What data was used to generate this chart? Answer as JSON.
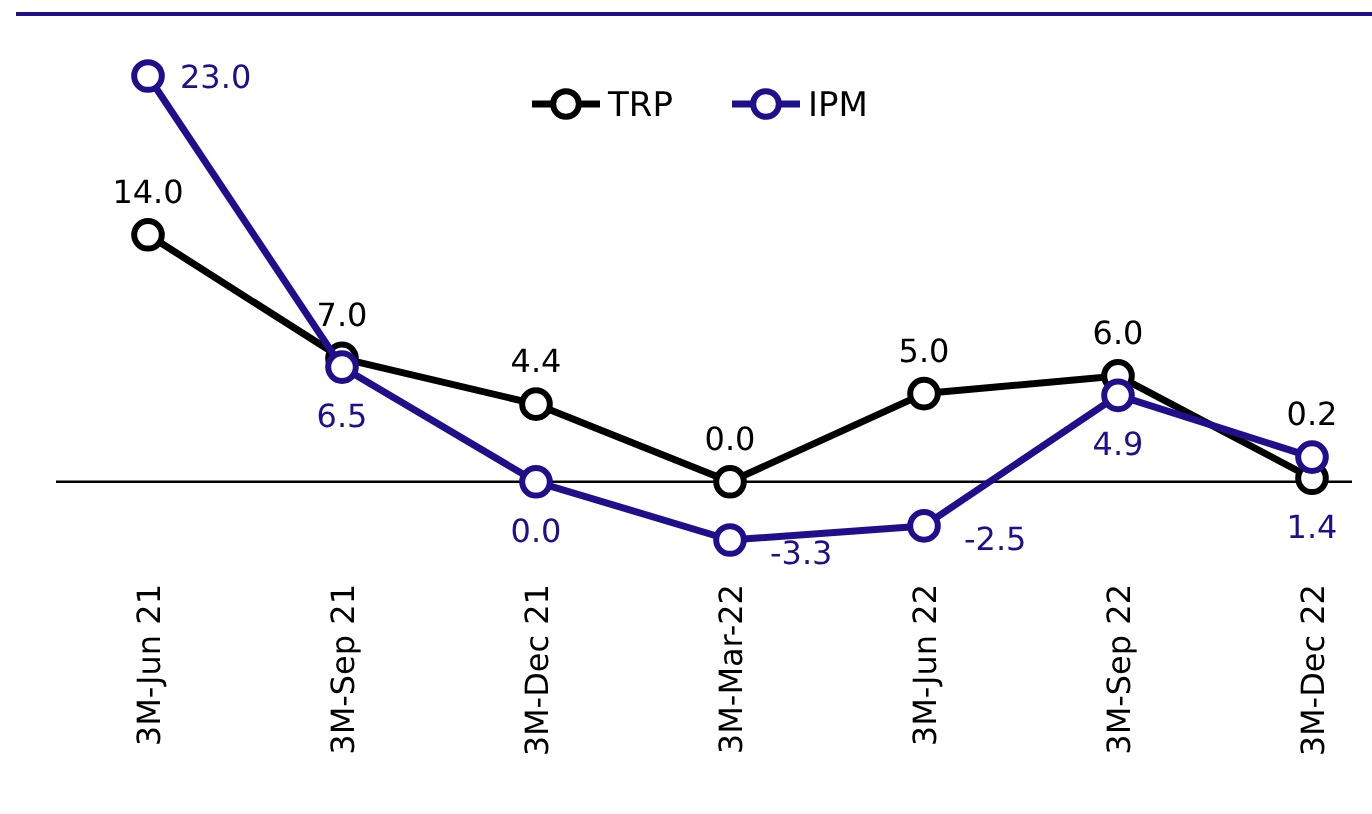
{
  "chart_data": {
    "type": "line",
    "categories": [
      "3M-Jun 21",
      "3M-Sep 21",
      "3M-Dec 21",
      "3M-Mar-22",
      "3M-Jun 22",
      "3M-Sep 22",
      "3M-Dec 22"
    ],
    "series": [
      {
        "name": "TRP",
        "color": "#000000",
        "values": [
          14.0,
          7.0,
          4.4,
          0.0,
          5.0,
          6.0,
          0.2
        ],
        "value_labels": [
          "14.0",
          "7.0",
          "4.4",
          "0.0",
          "5.0",
          "6.0",
          "0.2"
        ]
      },
      {
        "name": "IPM",
        "color": "#1f0f8c",
        "values": [
          23.0,
          6.5,
          0.0,
          -3.3,
          -2.5,
          4.9,
          1.4
        ],
        "value_labels": [
          "23.0",
          "6.5",
          "0.0",
          "-3.3",
          "-2.5",
          "4.9",
          "1.4"
        ]
      }
    ],
    "legend": "top",
    "marker": "circle"
  }
}
